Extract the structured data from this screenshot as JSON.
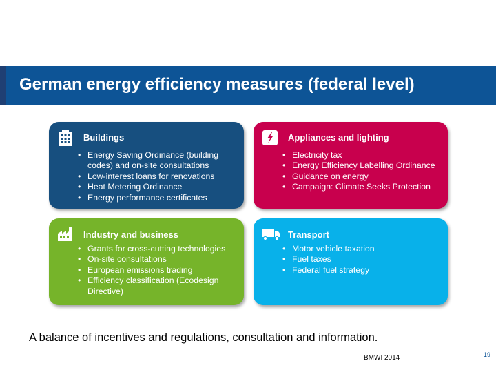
{
  "slide": {
    "title": "German energy efficiency measures (federal level)",
    "summary": "A balance of incentives and regulations, consultation and information.",
    "source": "BMWI 2014",
    "page_number": "19"
  },
  "cards": {
    "buildings": {
      "heading": "Buildings",
      "icon": "building-icon",
      "color": "#174f7f",
      "items": [
        "Energy Saving Ordinance (building codes) and on-site consultations",
        "Low-interest loans for renovations",
        "Heat Metering Ordinance",
        "Energy performance certificates"
      ]
    },
    "appliances": {
      "heading": "Appliances and lighting",
      "icon": "plug-lightning-icon",
      "color": "#c8004d",
      "items": [
        "Electricity tax",
        "Energy Efficiency Labelling Ordinance",
        "Guidance on energy",
        "Campaign: Climate Seeks Protection"
      ]
    },
    "industry": {
      "heading": "Industry and business",
      "icon": "factory-icon",
      "color": "#76b42a",
      "items": [
        "Grants for cross-cutting technologies",
        "On-site consultations",
        "European emissions trading",
        "Efficiency classification (Ecodesign Directive)"
      ]
    },
    "transport": {
      "heading": "Transport",
      "icon": "truck-icon",
      "color": "#08b1ea",
      "items": [
        "Motor vehicle taxation",
        "Fuel taxes",
        "Federal fuel strategy"
      ]
    }
  }
}
